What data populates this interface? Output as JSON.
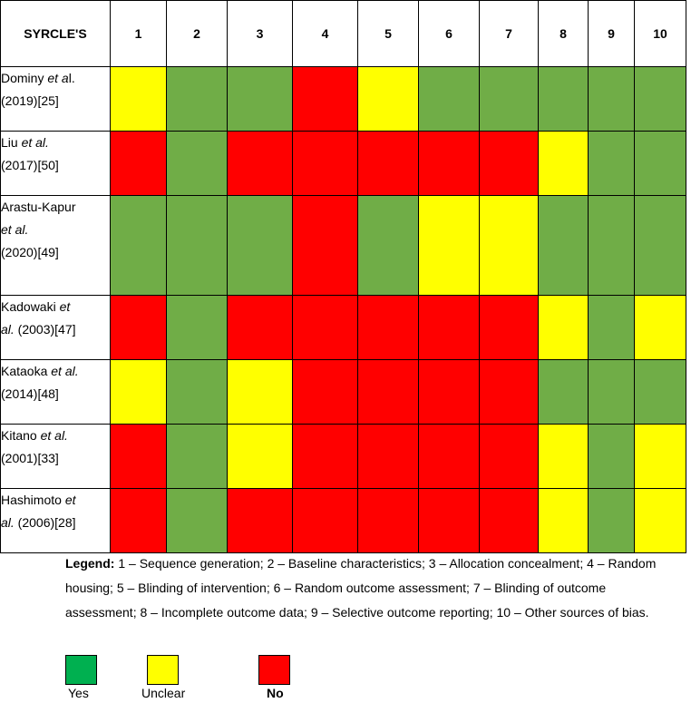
{
  "table": {
    "header_label": "SYRCLE'S",
    "columns": [
      "1",
      "2",
      "3",
      "4",
      "5",
      "6",
      "7",
      "8",
      "9",
      "10"
    ],
    "rows": [
      {
        "lines": [
          [
            "Dominy ",
            "et a",
            "l."
          ],
          [
            "(2019)[25]"
          ]
        ],
        "cells": [
          "U",
          "Y",
          "Y",
          "N",
          "U",
          "Y",
          "Y",
          "Y",
          "Y",
          "Y"
        ]
      },
      {
        "lines": [
          [
            "Liu ",
            "et al.",
            ""
          ],
          [
            "(2017)[50]"
          ]
        ],
        "cells": [
          "N",
          "Y",
          "N",
          "N",
          "N",
          "N",
          "N",
          "U",
          "Y",
          "Y"
        ]
      },
      {
        "lines": [
          [
            "Arastu-Kapur"
          ],
          [
            "",
            "et al.",
            ""
          ],
          [
            "(2020)[49]"
          ]
        ],
        "cells": [
          "Y",
          "Y",
          "Y",
          "N",
          "Y",
          "U",
          "U",
          "Y",
          "Y",
          "Y"
        ]
      },
      {
        "lines": [
          [
            "Kadowaki ",
            "et",
            ""
          ],
          [
            "",
            "al.",
            " (2003)[47]"
          ]
        ],
        "cells": [
          "N",
          "Y",
          "N",
          "N",
          "N",
          "N",
          "N",
          "U",
          "Y",
          "U"
        ]
      },
      {
        "lines": [
          [
            "Kataoka ",
            "et al.",
            ""
          ],
          [
            "(2014)[48]"
          ]
        ],
        "cells": [
          "U",
          "Y",
          "U",
          "N",
          "N",
          "N",
          "N",
          "Y",
          "Y",
          "Y"
        ]
      },
      {
        "lines": [
          [
            "Kitano ",
            "et al.",
            ""
          ],
          [
            "(2001)[33]"
          ]
        ],
        "cells": [
          "N",
          "Y",
          "U",
          "N",
          "N",
          "N",
          "N",
          "U",
          "Y",
          "U"
        ]
      },
      {
        "lines": [
          [
            "Hashimoto ",
            "et",
            ""
          ],
          [
            "",
            "al.",
            " (2006)[28]"
          ]
        ],
        "cells": [
          "N",
          "Y",
          "N",
          "N",
          "N",
          "N",
          "N",
          "U",
          "Y",
          "U"
        ]
      }
    ]
  },
  "legend": {
    "label": "Legend:",
    "text": " 1 – Sequence generation; 2 – Baseline characteristics; 3 – Allocation concealment; 4 – Random housing; 5 – Blinding of intervention; 6 – Random outcome assessment; 7 – Blinding of outcome assessment; 8 – Incomplete outcome data; 9 – Selective outcome reporting; 10 – Other sources of bias."
  },
  "key": {
    "yes": "Yes",
    "unclear": "Unclear",
    "no": "No"
  },
  "colors": {
    "yes_cell": "#70ad47",
    "unclear_cell": "#ffff00",
    "no_cell": "#ff0000",
    "yes_swatch": "#00b050"
  }
}
